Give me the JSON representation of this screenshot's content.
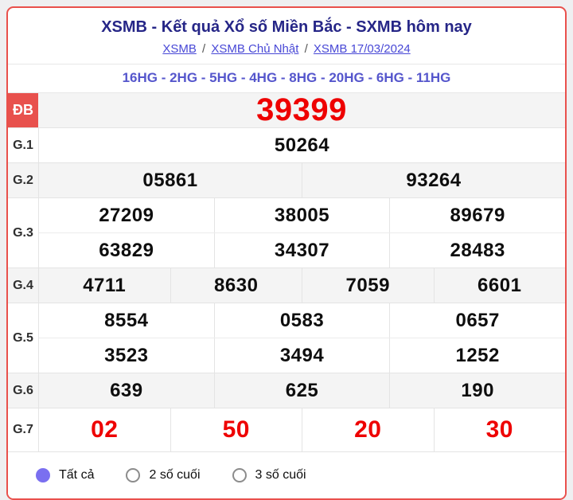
{
  "header": {
    "title": "XSMB - Kết quả Xổ số Miền Bắc - SXMB hôm nay",
    "breadcrumbs": [
      {
        "label": "XSMB"
      },
      {
        "label": "XSMB Chủ Nhật"
      },
      {
        "label": "XSMB 17/03/2024"
      }
    ],
    "separator": "/"
  },
  "subheader": {
    "text": "16HG - 2HG - 5HG - 4HG - 8HG - 20HG - 6HG - 11HG"
  },
  "results": {
    "rows": [
      {
        "label": "ĐB",
        "lines": [
          [
            "39399"
          ]
        ]
      },
      {
        "label": "G.1",
        "lines": [
          [
            "50264"
          ]
        ]
      },
      {
        "label": "G.2",
        "lines": [
          [
            "05861",
            "93264"
          ]
        ]
      },
      {
        "label": "G.3",
        "lines": [
          [
            "27209",
            "38005",
            "89679"
          ],
          [
            "63829",
            "34307",
            "28483"
          ]
        ]
      },
      {
        "label": "G.4",
        "lines": [
          [
            "4711",
            "8630",
            "7059",
            "6601"
          ]
        ]
      },
      {
        "label": "G.5",
        "lines": [
          [
            "8554",
            "0583",
            "0657"
          ],
          [
            "3523",
            "3494",
            "1252"
          ]
        ]
      },
      {
        "label": "G.6",
        "lines": [
          [
            "639",
            "625",
            "190"
          ]
        ]
      },
      {
        "label": "G.7",
        "lines": [
          [
            "02",
            "50",
            "20",
            "30"
          ]
        ]
      }
    ]
  },
  "filters": {
    "options": [
      {
        "label": "Tất cả",
        "selected": true
      },
      {
        "label": "2 số cuối",
        "selected": false
      },
      {
        "label": "3 số cuối",
        "selected": false
      }
    ]
  },
  "colors": {
    "card_border": "#e9504c",
    "title": "#262687",
    "link": "#4848d6",
    "subheader": "#5556cc",
    "special_label_bg": "#e8514d",
    "special_number": "#ee0000",
    "g7_number": "#ee0000",
    "gray_row_bg": "#f4f4f4",
    "radio_selected": "#7a6ff0"
  }
}
